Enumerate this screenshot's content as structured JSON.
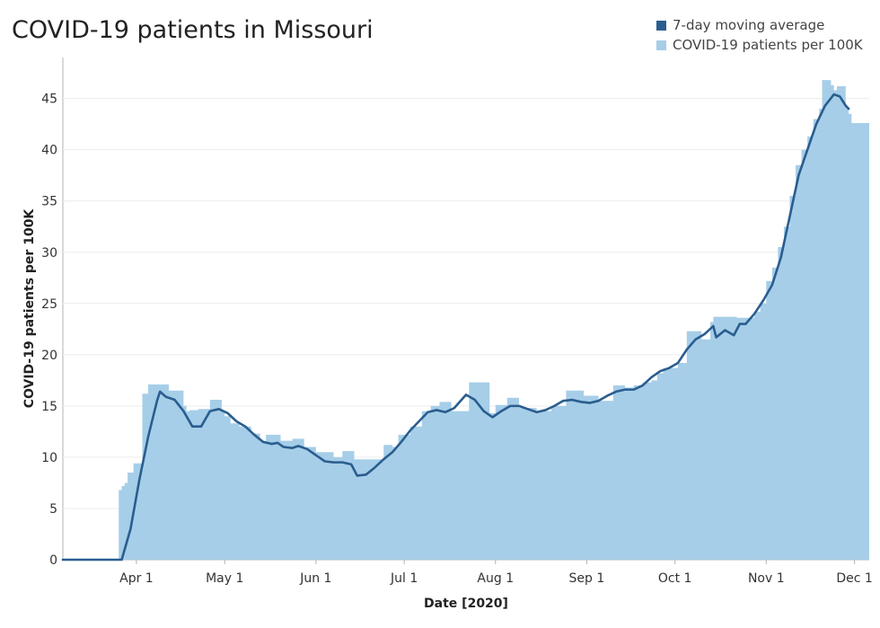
{
  "chart_title": "COVID-19 patients in Missouri",
  "legend": [
    {
      "label": "7-day moving average",
      "color": "#2a5d8f"
    },
    {
      "label": "COVID-19 patients per 100K",
      "color": "#a6cee8"
    }
  ],
  "chart_data": {
    "type": "area",
    "title": "COVID-19 patients in Missouri",
    "xlabel": "Date [2020]",
    "ylabel": "COVID-19 patients per 100K",
    "ylim": [
      0,
      49
    ],
    "xlim": [
      "2020-03-07",
      "2020-12-06"
    ],
    "yticks": [
      0,
      5,
      10,
      15,
      20,
      25,
      30,
      35,
      40,
      45
    ],
    "xticks": [
      {
        "date": "2020-04-01",
        "label": "Apr 1"
      },
      {
        "date": "2020-05-01",
        "label": "May 1"
      },
      {
        "date": "2020-06-01",
        "label": "Jun 1"
      },
      {
        "date": "2020-07-01",
        "label": "Jul 1"
      },
      {
        "date": "2020-08-01",
        "label": "Aug 1"
      },
      {
        "date": "2020-09-01",
        "label": "Sep 1"
      },
      {
        "date": "2020-10-01",
        "label": "Oct 1"
      },
      {
        "date": "2020-11-01",
        "label": "Nov 1"
      },
      {
        "date": "2020-12-01",
        "label": "Dec 1"
      }
    ],
    "grid": true,
    "legend_position": "top-right",
    "series": [
      {
        "name": "COVID-19 patients per 100K",
        "style": "step-area",
        "color": "#a6cee8",
        "points": [
          [
            "2020-03-07",
            0
          ],
          [
            "2020-03-25",
            0
          ],
          [
            "2020-03-26",
            6.8
          ],
          [
            "2020-03-27",
            7.2
          ],
          [
            "2020-03-28",
            7.5
          ],
          [
            "2020-03-29",
            8.5
          ],
          [
            "2020-03-31",
            9.4
          ],
          [
            "2020-04-03",
            16.2
          ],
          [
            "2020-04-05",
            17.1
          ],
          [
            "2020-04-12",
            16.5
          ],
          [
            "2020-04-17",
            15.0
          ],
          [
            "2020-04-18",
            14.5
          ],
          [
            "2020-04-19",
            14.6
          ],
          [
            "2020-04-22",
            14.7
          ],
          [
            "2020-04-26",
            15.6
          ],
          [
            "2020-04-30",
            14.5
          ],
          [
            "2020-05-01",
            14.0
          ],
          [
            "2020-05-03",
            13.3
          ],
          [
            "2020-05-06",
            13.0
          ],
          [
            "2020-05-10",
            12.3
          ],
          [
            "2020-05-13",
            11.5
          ],
          [
            "2020-05-15",
            12.2
          ],
          [
            "2020-05-20",
            11.6
          ],
          [
            "2020-05-24",
            11.8
          ],
          [
            "2020-05-28",
            11.0
          ],
          [
            "2020-06-01",
            10.5
          ],
          [
            "2020-06-07",
            10.0
          ],
          [
            "2020-06-10",
            10.6
          ],
          [
            "2020-06-14",
            9.8
          ],
          [
            "2020-06-18",
            9.8
          ],
          [
            "2020-06-24",
            11.2
          ],
          [
            "2020-06-27",
            11.0
          ],
          [
            "2020-06-29",
            12.2
          ],
          [
            "2020-07-03",
            13.0
          ],
          [
            "2020-07-07",
            14.5
          ],
          [
            "2020-07-10",
            15.0
          ],
          [
            "2020-07-13",
            15.4
          ],
          [
            "2020-07-17",
            14.5
          ],
          [
            "2020-07-23",
            17.3
          ],
          [
            "2020-07-30",
            14.3
          ],
          [
            "2020-08-01",
            15.1
          ],
          [
            "2020-08-05",
            15.8
          ],
          [
            "2020-08-09",
            14.8
          ],
          [
            "2020-08-15",
            14.5
          ],
          [
            "2020-08-20",
            15.0
          ],
          [
            "2020-08-25",
            16.5
          ],
          [
            "2020-08-31",
            16.0
          ],
          [
            "2020-09-05",
            15.5
          ],
          [
            "2020-09-10",
            17.0
          ],
          [
            "2020-09-14",
            16.8
          ],
          [
            "2020-09-17",
            17.0
          ],
          [
            "2020-09-20",
            17.3
          ],
          [
            "2020-09-23",
            17.5
          ],
          [
            "2020-09-25",
            18.2
          ],
          [
            "2020-09-27",
            18.7
          ],
          [
            "2020-10-02",
            19.2
          ],
          [
            "2020-10-05",
            22.3
          ],
          [
            "2020-10-10",
            21.5
          ],
          [
            "2020-10-13",
            23.2
          ],
          [
            "2020-10-14",
            23.7
          ],
          [
            "2020-10-22",
            23.6
          ],
          [
            "2020-10-28",
            24.2
          ],
          [
            "2020-10-30",
            25.0
          ],
          [
            "2020-11-01",
            27.2
          ],
          [
            "2020-11-03",
            28.5
          ],
          [
            "2020-11-05",
            30.5
          ],
          [
            "2020-11-07",
            32.5
          ],
          [
            "2020-11-09",
            35.5
          ],
          [
            "2020-11-11",
            38.5
          ],
          [
            "2020-11-13",
            40.0
          ],
          [
            "2020-11-15",
            41.3
          ],
          [
            "2020-11-17",
            43.0
          ],
          [
            "2020-11-19",
            44.0
          ],
          [
            "2020-11-20",
            46.8
          ],
          [
            "2020-11-23",
            46.3
          ],
          [
            "2020-11-24",
            45.8
          ],
          [
            "2020-11-25",
            46.2
          ],
          [
            "2020-11-28",
            44.2
          ],
          [
            "2020-11-29",
            43.5
          ],
          [
            "2020-11-30",
            42.6
          ],
          [
            "2020-12-06",
            42.6
          ]
        ]
      },
      {
        "name": "7-day moving average",
        "style": "line",
        "color": "#2a5d8f",
        "points": [
          [
            "2020-03-07",
            0
          ],
          [
            "2020-03-27",
            0
          ],
          [
            "2020-03-30",
            3.0
          ],
          [
            "2020-04-02",
            7.8
          ],
          [
            "2020-04-05",
            12.0
          ],
          [
            "2020-04-08",
            15.5
          ],
          [
            "2020-04-09",
            16.4
          ],
          [
            "2020-04-11",
            15.9
          ],
          [
            "2020-04-14",
            15.6
          ],
          [
            "2020-04-17",
            14.5
          ],
          [
            "2020-04-20",
            13.0
          ],
          [
            "2020-04-23",
            13.0
          ],
          [
            "2020-04-26",
            14.5
          ],
          [
            "2020-04-29",
            14.7
          ],
          [
            "2020-05-02",
            14.3
          ],
          [
            "2020-05-05",
            13.5
          ],
          [
            "2020-05-08",
            13.0
          ],
          [
            "2020-05-11",
            12.2
          ],
          [
            "2020-05-14",
            11.5
          ],
          [
            "2020-05-17",
            11.3
          ],
          [
            "2020-05-19",
            11.4
          ],
          [
            "2020-05-21",
            11.0
          ],
          [
            "2020-05-24",
            10.9
          ],
          [
            "2020-05-26",
            11.1
          ],
          [
            "2020-05-29",
            10.8
          ],
          [
            "2020-06-01",
            10.2
          ],
          [
            "2020-06-04",
            9.6
          ],
          [
            "2020-06-07",
            9.5
          ],
          [
            "2020-06-10",
            9.5
          ],
          [
            "2020-06-13",
            9.3
          ],
          [
            "2020-06-15",
            8.2
          ],
          [
            "2020-06-18",
            8.3
          ],
          [
            "2020-06-21",
            9.0
          ],
          [
            "2020-06-24",
            9.8
          ],
          [
            "2020-06-27",
            10.5
          ],
          [
            "2020-06-30",
            11.5
          ],
          [
            "2020-07-03",
            12.6
          ],
          [
            "2020-07-06",
            13.5
          ],
          [
            "2020-07-09",
            14.4
          ],
          [
            "2020-07-12",
            14.6
          ],
          [
            "2020-07-15",
            14.4
          ],
          [
            "2020-07-18",
            14.8
          ],
          [
            "2020-07-22",
            16.1
          ],
          [
            "2020-07-25",
            15.6
          ],
          [
            "2020-07-28",
            14.5
          ],
          [
            "2020-07-31",
            13.9
          ],
          [
            "2020-08-03",
            14.5
          ],
          [
            "2020-08-06",
            15.0
          ],
          [
            "2020-08-09",
            15.0
          ],
          [
            "2020-08-12",
            14.7
          ],
          [
            "2020-08-15",
            14.4
          ],
          [
            "2020-08-18",
            14.6
          ],
          [
            "2020-08-21",
            15.0
          ],
          [
            "2020-08-24",
            15.5
          ],
          [
            "2020-08-27",
            15.6
          ],
          [
            "2020-08-30",
            15.4
          ],
          [
            "2020-09-02",
            15.3
          ],
          [
            "2020-09-05",
            15.5
          ],
          [
            "2020-09-08",
            16.0
          ],
          [
            "2020-09-11",
            16.4
          ],
          [
            "2020-09-14",
            16.6
          ],
          [
            "2020-09-17",
            16.6
          ],
          [
            "2020-09-20",
            17.0
          ],
          [
            "2020-09-23",
            17.8
          ],
          [
            "2020-09-26",
            18.4
          ],
          [
            "2020-09-29",
            18.7
          ],
          [
            "2020-10-02",
            19.2
          ],
          [
            "2020-10-05",
            20.5
          ],
          [
            "2020-10-08",
            21.5
          ],
          [
            "2020-10-11",
            22.0
          ],
          [
            "2020-10-14",
            22.8
          ],
          [
            "2020-10-15",
            21.7
          ],
          [
            "2020-10-18",
            22.4
          ],
          [
            "2020-10-21",
            21.9
          ],
          [
            "2020-10-23",
            23.0
          ],
          [
            "2020-10-25",
            23.0
          ],
          [
            "2020-10-28",
            24.0
          ],
          [
            "2020-10-31",
            25.3
          ],
          [
            "2020-11-03",
            26.8
          ],
          [
            "2020-11-06",
            29.5
          ],
          [
            "2020-11-09",
            33.5
          ],
          [
            "2020-11-12",
            37.5
          ],
          [
            "2020-11-15",
            40.0
          ],
          [
            "2020-11-18",
            42.5
          ],
          [
            "2020-11-21",
            44.3
          ],
          [
            "2020-11-24",
            45.4
          ],
          [
            "2020-11-26",
            45.2
          ],
          [
            "2020-11-28",
            44.3
          ],
          [
            "2020-11-29",
            44.0
          ]
        ]
      }
    ]
  }
}
